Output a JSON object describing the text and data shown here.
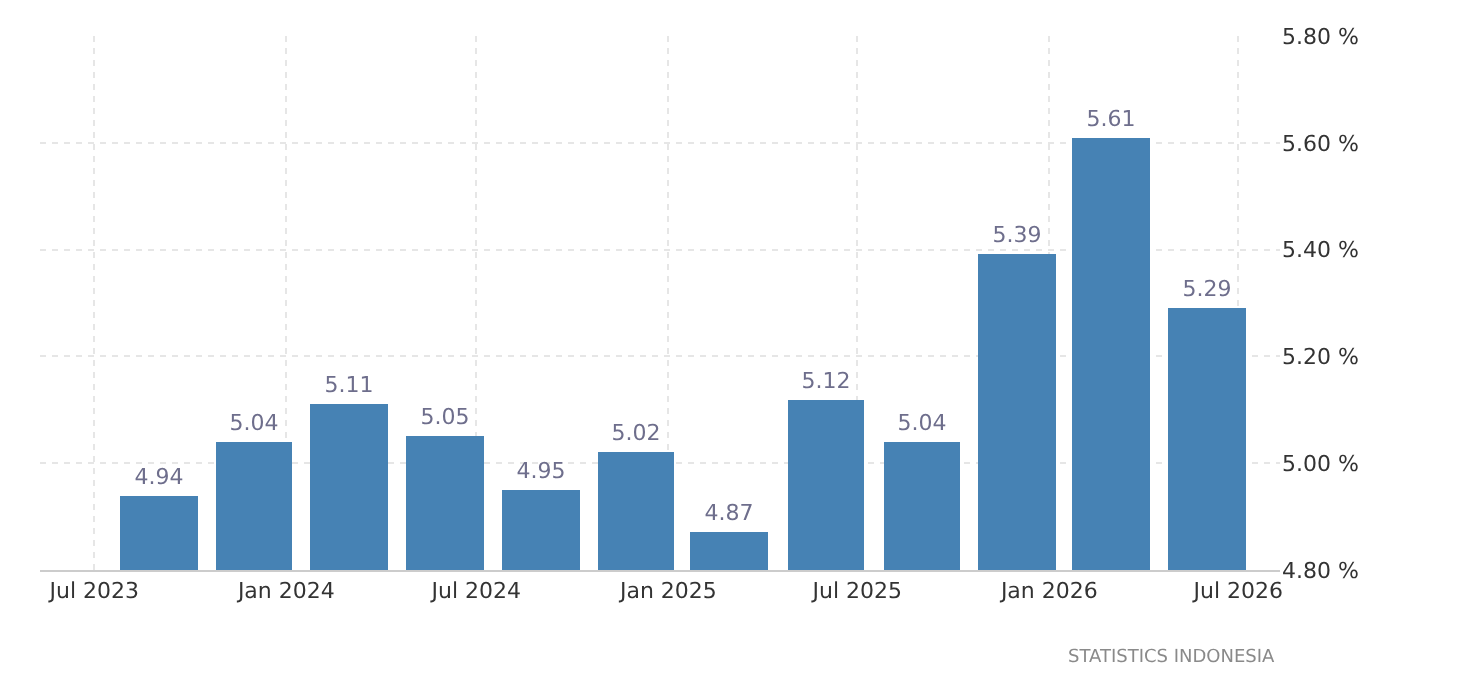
{
  "chart_data": {
    "type": "bar",
    "x": [
      "2023-09",
      "2023-12",
      "2024-03",
      "2024-06",
      "2024-09",
      "2024-12",
      "2025-03",
      "2025-06",
      "2025-09",
      "2025-12",
      "2026-03",
      "2026-06"
    ],
    "values": [
      4.94,
      5.04,
      5.11,
      5.05,
      4.95,
      5.02,
      4.87,
      5.12,
      5.04,
      5.39,
      5.61,
      5.29
    ],
    "color": "#4682b4",
    "data_labels": true,
    "xlim": [
      "2023-05-10",
      "2026-08-10"
    ],
    "xticks": [
      {
        "value": "2023-07",
        "label": "Jul 2023"
      },
      {
        "value": "2024-01",
        "label": "Jan 2024"
      },
      {
        "value": "2024-07",
        "label": "Jul 2024"
      },
      {
        "value": "2025-01",
        "label": "Jan 2025"
      },
      {
        "value": "2025-07",
        "label": "Jul 2025"
      },
      {
        "value": "2026-01",
        "label": "Jan 2026"
      },
      {
        "value": "2026-07",
        "label": "Jul 2026"
      }
    ],
    "ylim": [
      4.8,
      5.8
    ],
    "yticks": [
      {
        "value": 4.8,
        "label": "4.80 %"
      },
      {
        "value": 5.0,
        "label": "5.00 %"
      },
      {
        "value": 5.2,
        "label": "5.20 %"
      },
      {
        "value": 5.4,
        "label": "5.40 %"
      },
      {
        "value": 5.6,
        "label": "5.60 %"
      },
      {
        "value": 5.8,
        "label": "5.80 %"
      }
    ],
    "grid": true,
    "annotations": [
      "STATISTICS INDONESIA"
    ]
  }
}
